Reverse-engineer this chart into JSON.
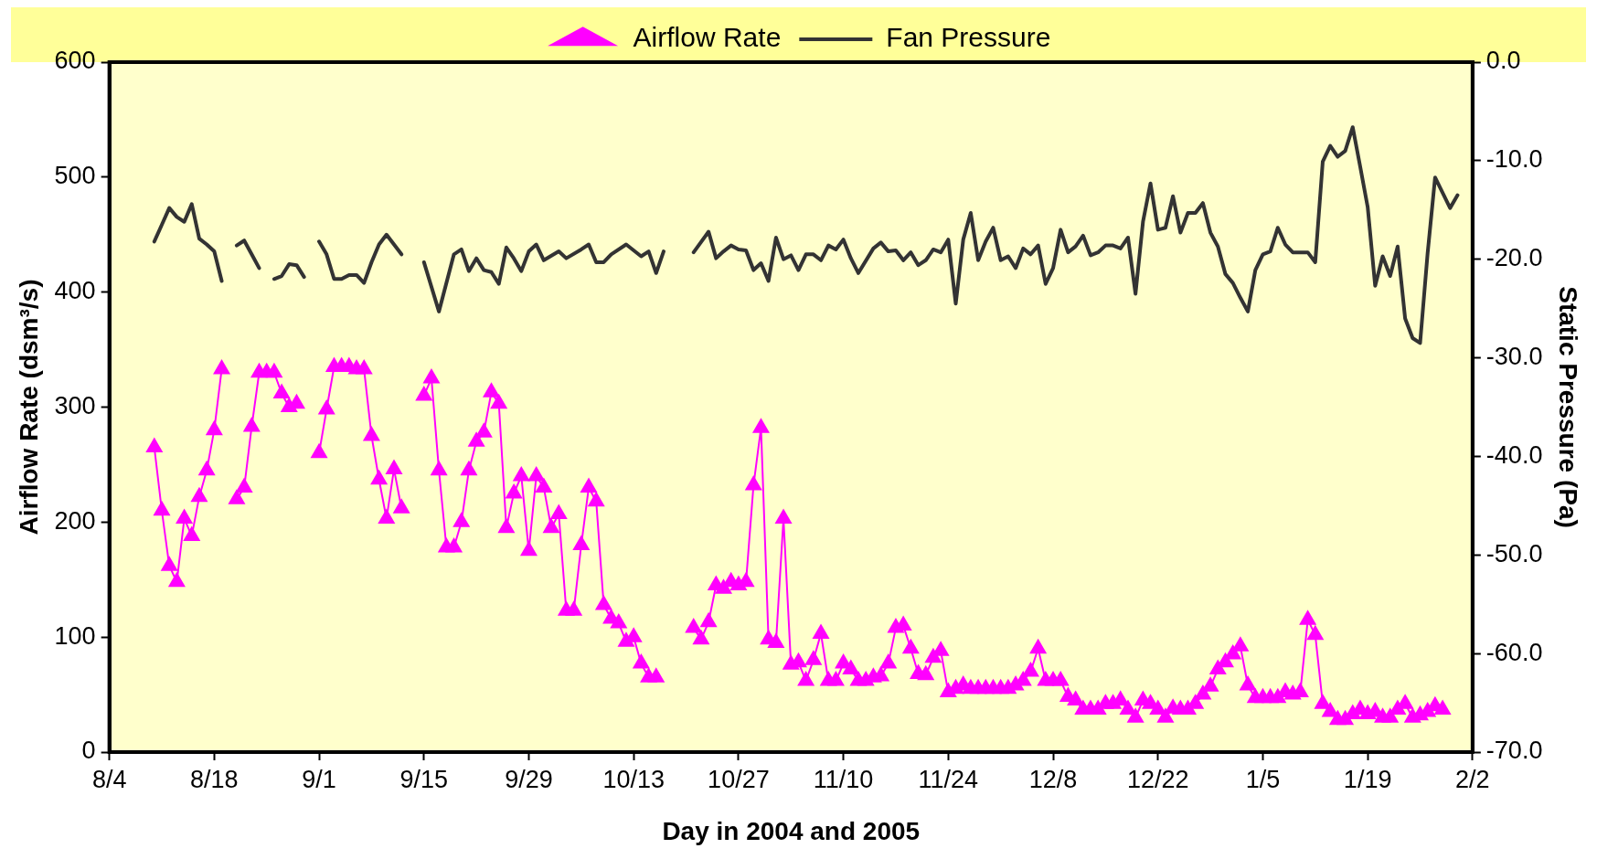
{
  "chart_data": {
    "type": "line",
    "xlabel": "Day in 2004 and 2005",
    "ylabel": "Airflow Rate (dsm³/s)",
    "y2label": "Static Pressure (Pa)",
    "xlim": [
      "2004-08-04",
      "2005-02-02"
    ],
    "xticks": [
      {
        "value": "2004-08-04",
        "label": "8/4"
      },
      {
        "value": "2004-08-18",
        "label": "8/18"
      },
      {
        "value": "2004-09-01",
        "label": "9/1"
      },
      {
        "value": "2004-09-15",
        "label": "9/15"
      },
      {
        "value": "2004-09-29",
        "label": "9/29"
      },
      {
        "value": "2004-10-13",
        "label": "10/13"
      },
      {
        "value": "2004-10-27",
        "label": "10/27"
      },
      {
        "value": "2004-11-10",
        "label": "11/10"
      },
      {
        "value": "2004-11-24",
        "label": "11/24"
      },
      {
        "value": "2004-12-08",
        "label": "12/8"
      },
      {
        "value": "2004-12-22",
        "label": "12/22"
      },
      {
        "value": "2005-01-05",
        "label": "1/5"
      },
      {
        "value": "2005-01-19",
        "label": "1/19"
      },
      {
        "value": "2005-02-02",
        "label": "2/2"
      }
    ],
    "ylim": [
      0,
      600
    ],
    "yticks": [
      0,
      100,
      200,
      300,
      400,
      500,
      600
    ],
    "y2lim": [
      -70,
      0
    ],
    "y2ticks": [
      {
        "value": -70,
        "label": "-70.0"
      },
      {
        "value": -60,
        "label": "-60.0"
      },
      {
        "value": -50,
        "label": "-50.0"
      },
      {
        "value": -40,
        "label": "-40.0"
      },
      {
        "value": -30,
        "label": "-30.0"
      },
      {
        "value": -20,
        "label": "-20.0"
      },
      {
        "value": -10,
        "label": "-10.0"
      },
      {
        "value": 0,
        "label": "0.0"
      }
    ],
    "grid": false,
    "legend": "top",
    "series": [
      {
        "name": "Airflow Rate",
        "color": "#ff00ff",
        "marker": "triangle",
        "line_style": "solid",
        "x": [
          "2004-08-10",
          "2004-08-11",
          "2004-08-12",
          "2004-08-13",
          "2004-08-14",
          "2004-08-15",
          "2004-08-16",
          "2004-08-17",
          "2004-08-18",
          "2004-08-19",
          "2004-08-20",
          "2004-08-21",
          "2004-08-22",
          "2004-08-23",
          "2004-08-24",
          "2004-08-25",
          "2004-08-26",
          "2004-08-27",
          "2004-08-28",
          "2004-08-29",
          "2004-08-30",
          "2004-09-01",
          "2004-09-02",
          "2004-09-03",
          "2004-09-04",
          "2004-09-05",
          "2004-09-06",
          "2004-09-07",
          "2004-09-08",
          "2004-09-09",
          "2004-09-10",
          "2004-09-11",
          "2004-09-12",
          "2004-09-13",
          "2004-09-15",
          "2004-09-16",
          "2004-09-17",
          "2004-09-18",
          "2004-09-19",
          "2004-09-20",
          "2004-09-21",
          "2004-09-22",
          "2004-09-23",
          "2004-09-24",
          "2004-09-25",
          "2004-09-26",
          "2004-09-27",
          "2004-09-28",
          "2004-09-29",
          "2004-09-30",
          "2004-10-01",
          "2004-10-02",
          "2004-10-03",
          "2004-10-04",
          "2004-10-05",
          "2004-10-06",
          "2004-10-07",
          "2004-10-08",
          "2004-10-09",
          "2004-10-10",
          "2004-10-11",
          "2004-10-12",
          "2004-10-13",
          "2004-10-14",
          "2004-10-15",
          "2004-10-16",
          "2004-10-17",
          "2004-10-21",
          "2004-10-22",
          "2004-10-23",
          "2004-10-24",
          "2004-10-25",
          "2004-10-26",
          "2004-10-27",
          "2004-10-28",
          "2004-10-29",
          "2004-10-30",
          "2004-10-31",
          "2004-11-01",
          "2004-11-02",
          "2004-11-03",
          "2004-11-04",
          "2004-11-05",
          "2004-11-06",
          "2004-11-07",
          "2004-11-08",
          "2004-11-09",
          "2004-11-10",
          "2004-11-11",
          "2004-11-12",
          "2004-11-13",
          "2004-11-14",
          "2004-11-15",
          "2004-11-16",
          "2004-11-17",
          "2004-11-18",
          "2004-11-19",
          "2004-11-20",
          "2004-11-21",
          "2004-11-22",
          "2004-11-23",
          "2004-11-24",
          "2004-11-25",
          "2004-11-26",
          "2004-11-27",
          "2004-11-28",
          "2004-11-29",
          "2004-11-30",
          "2004-12-01",
          "2004-12-02",
          "2004-12-03",
          "2004-12-04",
          "2004-12-05",
          "2004-12-06",
          "2004-12-07",
          "2004-12-08",
          "2004-12-09",
          "2004-12-10",
          "2004-12-11",
          "2004-12-12",
          "2004-12-13",
          "2004-12-14",
          "2004-12-15",
          "2004-12-16",
          "2004-12-17",
          "2004-12-18",
          "2004-12-19",
          "2004-12-20",
          "2004-12-21",
          "2004-12-22",
          "2004-12-23",
          "2004-12-24",
          "2004-12-25",
          "2004-12-26",
          "2004-12-27",
          "2004-12-28",
          "2004-12-29",
          "2004-12-30",
          "2004-12-31",
          "2005-01-01",
          "2005-01-02",
          "2005-01-03",
          "2005-01-04",
          "2005-01-05",
          "2005-01-06",
          "2005-01-07",
          "2005-01-08",
          "2005-01-09",
          "2005-01-10",
          "2005-01-11",
          "2005-01-12",
          "2005-01-13",
          "2005-01-14",
          "2005-01-15",
          "2005-01-16",
          "2005-01-17",
          "2005-01-18",
          "2005-01-19",
          "2005-01-20",
          "2005-01-21",
          "2005-01-22",
          "2005-01-23",
          "2005-01-24",
          "2005-01-25",
          "2005-01-26",
          "2005-01-27",
          "2005-01-28",
          "2005-01-29"
        ],
        "values": [
          265,
          210,
          162,
          148,
          203,
          188,
          222,
          245,
          280,
          333,
          null,
          220,
          230,
          283,
          330,
          330,
          330,
          312,
          300,
          303,
          null,
          260,
          298,
          335,
          335,
          335,
          333,
          333,
          275,
          237,
          203,
          246,
          212,
          null,
          310,
          325,
          245,
          178,
          178,
          200,
          245,
          270,
          278,
          313,
          303,
          195,
          225,
          240,
          175,
          240,
          230,
          195,
          207,
          123,
          123,
          180,
          230,
          218,
          128,
          116,
          112,
          96,
          100,
          77,
          65,
          65,
          null,
          108,
          98,
          113,
          145,
          142,
          148,
          145,
          148,
          232,
          282,
          98,
          95,
          203,
          76,
          78,
          62,
          80,
          103,
          62,
          62,
          77,
          72,
          62,
          62,
          65,
          66,
          77,
          108,
          110,
          90,
          68,
          67,
          82,
          88,
          52,
          55,
          58,
          55,
          55,
          55,
          55,
          55,
          55,
          58,
          62,
          70,
          90,
          62,
          62,
          62,
          48,
          45,
          37,
          37,
          37,
          42,
          42,
          45,
          37,
          30,
          45,
          42,
          37,
          30,
          38,
          37,
          37,
          42,
          50,
          57,
          72,
          78,
          85,
          92,
          58,
          47,
          47,
          47,
          47,
          52,
          50,
          52,
          115,
          102,
          42,
          35,
          28,
          28,
          33,
          37,
          33,
          35,
          30,
          30,
          37,
          42,
          30,
          32,
          35,
          40,
          37
        ]
      },
      {
        "name": "Fan Pressure",
        "color": "#333333",
        "marker": "none",
        "line_style": "solid",
        "axis": "y2",
        "x": [
          "2004-08-10",
          "2004-08-11",
          "2004-08-12",
          "2004-08-13",
          "2004-08-14",
          "2004-08-15",
          "2004-08-16",
          "2004-08-17",
          "2004-08-18",
          "2004-08-19",
          "2004-08-20",
          "2004-08-21",
          "2004-08-22",
          "2004-08-23",
          "2004-08-24",
          "2004-08-25",
          "2004-08-26",
          "2004-08-27",
          "2004-08-28",
          "2004-08-29",
          "2004-08-30",
          "2004-08-31",
          "2004-09-01",
          "2004-09-02",
          "2004-09-03",
          "2004-09-04",
          "2004-09-05",
          "2004-09-06",
          "2004-09-07",
          "2004-09-08",
          "2004-09-09",
          "2004-09-10",
          "2004-09-11",
          "2004-09-12",
          "2004-09-13",
          "2004-09-15",
          "2004-09-17",
          "2004-09-19",
          "2004-09-20",
          "2004-09-21",
          "2004-09-22",
          "2004-09-23",
          "2004-09-24",
          "2004-09-25",
          "2004-09-26",
          "2004-09-27",
          "2004-09-28",
          "2004-09-29",
          "2004-09-30",
          "2004-10-01",
          "2004-10-03",
          "2004-10-04",
          "2004-10-06",
          "2004-10-07",
          "2004-10-08",
          "2004-10-09",
          "2004-10-10",
          "2004-10-12",
          "2004-10-14",
          "2004-10-15",
          "2004-10-16",
          "2004-10-17",
          "2004-10-18",
          "2004-10-21",
          "2004-10-23",
          "2004-10-24",
          "2004-10-25",
          "2004-10-26",
          "2004-10-27",
          "2004-10-28",
          "2004-10-29",
          "2004-10-30",
          "2004-10-31",
          "2004-11-01",
          "2004-11-02",
          "2004-11-03",
          "2004-11-04",
          "2004-11-05",
          "2004-11-06",
          "2004-11-07",
          "2004-11-08",
          "2004-11-09",
          "2004-11-10",
          "2004-11-11",
          "2004-11-12",
          "2004-11-14",
          "2004-11-15",
          "2004-11-16",
          "2004-11-17",
          "2004-11-18",
          "2004-11-19",
          "2004-11-20",
          "2004-11-21",
          "2004-11-22",
          "2004-11-23",
          "2004-11-24",
          "2004-11-25",
          "2004-11-26",
          "2004-11-27",
          "2004-11-28",
          "2004-11-29",
          "2004-11-30",
          "2004-12-01",
          "2004-12-02",
          "2004-12-03",
          "2004-12-04",
          "2004-12-05",
          "2004-12-06",
          "2004-12-07",
          "2004-12-08",
          "2004-12-09",
          "2004-12-10",
          "2004-12-11",
          "2004-12-12",
          "2004-12-13",
          "2004-12-14",
          "2004-12-15",
          "2004-12-16",
          "2004-12-17",
          "2004-12-18",
          "2004-12-19",
          "2004-12-20",
          "2004-12-21",
          "2004-12-22",
          "2004-12-23",
          "2004-12-24",
          "2004-12-25",
          "2004-12-26",
          "2004-12-27",
          "2004-12-28",
          "2004-12-29",
          "2004-12-30",
          "2004-12-31",
          "2005-01-01",
          "2005-01-02",
          "2005-01-03",
          "2005-01-04",
          "2005-01-05",
          "2005-01-06",
          "2005-01-07",
          "2005-01-08",
          "2005-01-09",
          "2005-01-11",
          "2005-01-12",
          "2005-01-13",
          "2005-01-14",
          "2005-01-15",
          "2005-01-16",
          "2005-01-17",
          "2005-01-18",
          "2005-01-19",
          "2005-01-20",
          "2005-01-21",
          "2005-01-22",
          "2005-01-23",
          "2005-01-24",
          "2005-01-25",
          "2005-01-26",
          "2005-01-27",
          "2005-01-28",
          "2005-01-30",
          "2005-01-31"
        ],
        "values": [
          -18.2,
          -16.5,
          -14.8,
          -15.7,
          -16.2,
          -14.4,
          -17.9,
          -18.5,
          -19.2,
          -22.2,
          null,
          -18.6,
          -18.1,
          -19.5,
          -20.9,
          null,
          -22.0,
          -21.7,
          -20.5,
          -20.6,
          -21.8,
          null,
          -18.2,
          -19.5,
          -22.0,
          -22.0,
          -21.6,
          -21.6,
          -22.4,
          -20.3,
          -18.5,
          -17.5,
          -18.5,
          -19.5,
          null,
          -20.3,
          -25.3,
          -19.5,
          -19.0,
          -21.2,
          -19.9,
          -21.1,
          -21.3,
          -22.5,
          -18.8,
          -19.9,
          -21.2,
          -19.2,
          -18.5,
          -20.1,
          -19.2,
          -19.9,
          -19.0,
          -18.5,
          -20.3,
          -20.3,
          -19.5,
          -18.5,
          -19.7,
          -19.2,
          -21.4,
          -19.2,
          null,
          -19.3,
          -17.2,
          -19.9,
          -19.2,
          -18.6,
          -19.0,
          -19.1,
          -21.1,
          -20.4,
          -22.2,
          -17.8,
          -20.0,
          -19.6,
          -21.1,
          -19.5,
          -19.5,
          -20.1,
          -18.6,
          -19.0,
          -18.0,
          -19.9,
          -21.4,
          -18.9,
          -18.3,
          -19.2,
          -19.1,
          -20.1,
          -19.3,
          -20.6,
          -20.1,
          -19.0,
          -19.3,
          -18.0,
          -24.5,
          -18.0,
          -15.3,
          -20.1,
          -18.2,
          -16.8,
          -20.1,
          -19.7,
          -20.9,
          -18.9,
          -19.5,
          -18.6,
          -22.5,
          -20.9,
          -17.0,
          -19.3,
          -18.7,
          -17.6,
          -19.6,
          -19.3,
          -18.6,
          -18.6,
          -18.9,
          -17.8,
          -23.5,
          -16.2,
          -12.3,
          -17.0,
          -16.8,
          -13.6,
          -17.3,
          -15.3,
          -15.3,
          -14.3,
          -17.3,
          -18.7,
          -21.5,
          -22.4,
          -23.9,
          -25.3,
          -21.1,
          -19.5,
          -19.2,
          -16.8,
          -18.5,
          -19.3,
          -19.3,
          -20.3,
          -10.1,
          -8.5,
          -9.6,
          -9.0,
          -6.6,
          -10.6,
          -14.7,
          -22.7,
          -19.7,
          -21.7,
          -18.7,
          -26.0,
          -28.0,
          -28.5,
          -19.4,
          -11.7,
          -14.8,
          -13.5
        ]
      }
    ]
  }
}
